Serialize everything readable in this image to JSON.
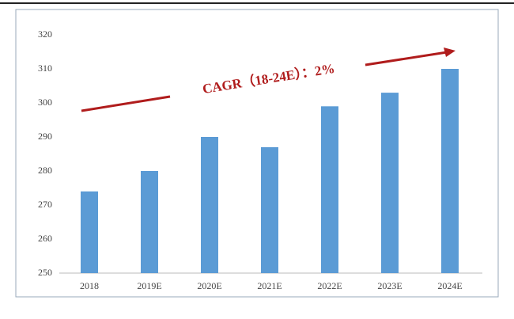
{
  "chart_data": {
    "type": "bar",
    "annotation": "CAGR（18-24E）：2%",
    "categories": [
      "2018",
      "2019E",
      "2020E",
      "2021E",
      "2022E",
      "2023E",
      "2024E"
    ],
    "values": [
      274,
      280,
      290,
      287,
      299,
      303,
      310
    ],
    "color": "#5b9bd5",
    "ylim": [
      250,
      320
    ],
    "yticks": [
      250,
      260,
      270,
      280,
      290,
      300,
      310,
      320
    ],
    "grid": false
  }
}
